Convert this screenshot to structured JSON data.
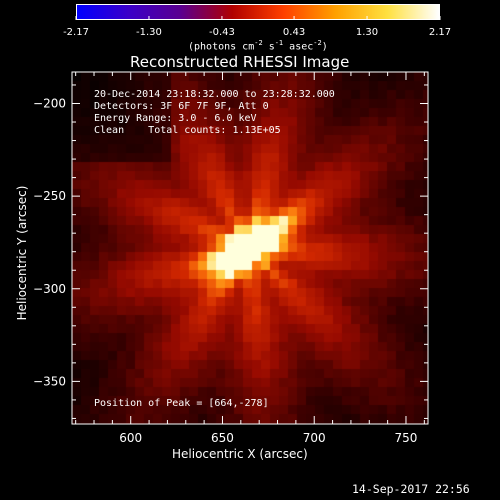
{
  "colorbar": {
    "tick_labels": [
      "-2.17",
      "-1.30",
      "-0.43",
      "0.43",
      "1.30",
      "2.17"
    ],
    "tick_values": [
      -2.17,
      -1.3,
      -0.43,
      0.43,
      1.3,
      2.17
    ],
    "range": [
      -2.17,
      2.17
    ],
    "unit_main": "(photons cm",
    "unit_sup1": "-2",
    "unit_mid1": " s",
    "unit_sup2": "-1",
    "unit_mid2": " asec",
    "unit_sup3": "-2",
    "unit_end": ")",
    "colors": [
      "#0000ff",
      "#3b00c8",
      "#5a0090",
      "#b00000",
      "#ff4000",
      "#ffa000",
      "#ffe040",
      "#ffffff"
    ]
  },
  "plot": {
    "title": "Reconstructed RHESSI Image",
    "info_line1": "20-Dec-2014 23:18:32.000 to 23:28:32.000",
    "info_line2": "Detectors: 3F 6F 7F 9F, Att 0",
    "info_line3": "Energy Range: 3.0 - 6.0 keV",
    "info_line4": "Clean    Total counts: 1.13E+05",
    "peak_text": "Position of Peak = [664,-278]",
    "xlabel": "Heliocentric X (arcsec)",
    "ylabel": "Heliocentric Y (arcsec)",
    "x_ticks": [
      600,
      650,
      700,
      750
    ],
    "x_tick_labels": [
      "600",
      "650",
      "700",
      "750"
    ],
    "y_ticks": [
      -200,
      -250,
      -300,
      -350
    ],
    "y_tick_labels": [
      "−200",
      "−250",
      "−300",
      "−350"
    ],
    "xlim": [
      568,
      762
    ],
    "ylim": [
      -373,
      -183
    ],
    "peak_position": [
      664,
      -278
    ]
  },
  "footer": {
    "timestamp": "14-Sep-2017 22:56"
  }
}
